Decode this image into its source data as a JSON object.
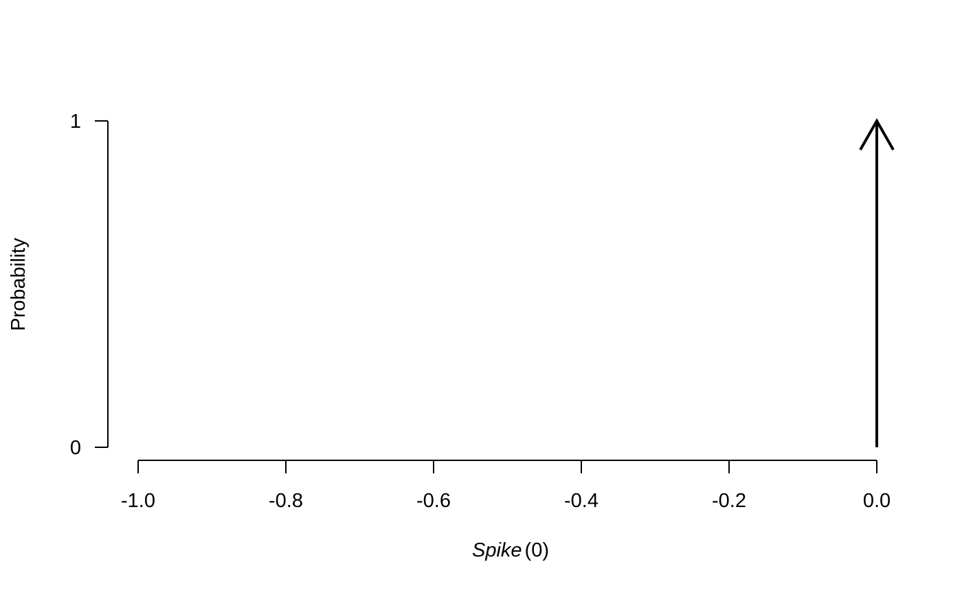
{
  "chart_data": {
    "type": "spike",
    "title": "",
    "xlabel": {
      "name": "Spike",
      "argument": "(0)"
    },
    "ylabel": "Probability",
    "xlim": [
      -1.0,
      0.0
    ],
    "ylim": [
      0,
      1
    ],
    "x_ticks": [
      -1.0,
      -0.8,
      -0.6,
      -0.4,
      -0.2,
      0.0
    ],
    "x_tick_labels": [
      "-1.0",
      "-0.8",
      "-0.6",
      "-0.4",
      "-0.2",
      "0.0"
    ],
    "y_ticks": [
      0,
      1
    ],
    "y_tick_labels": [
      "0",
      "1"
    ],
    "grid": false,
    "spikes": [
      {
        "x": 0.0,
        "probability": 1
      }
    ],
    "colors": {
      "axis": "#000000",
      "spike": "#000000"
    }
  }
}
